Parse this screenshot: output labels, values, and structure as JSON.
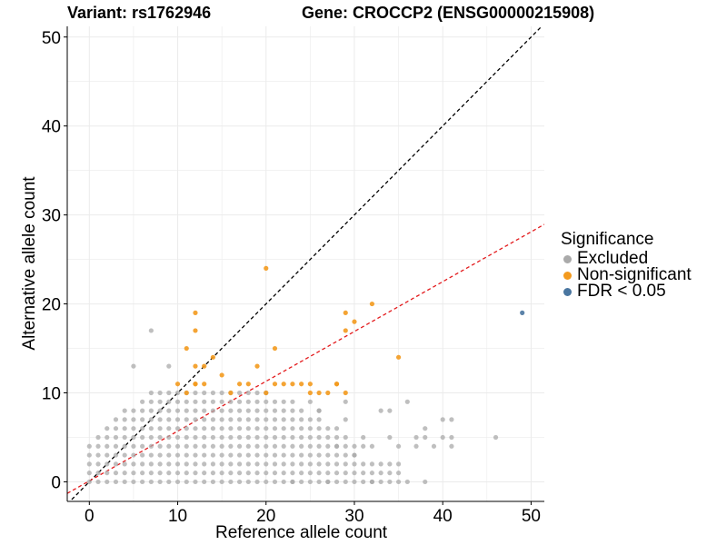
{
  "header": {
    "variant": "Variant: rs1762946",
    "gene": "Gene: CROCCP2 (ENSG00000215908)"
  },
  "chart_data": {
    "type": "scatter",
    "xlabel": "Reference allele count",
    "ylabel": "Alternative allele count",
    "xlim": [
      -2.5,
      51.5
    ],
    "ylim": [
      -2.2,
      51.2
    ],
    "xticks": [
      0,
      10,
      20,
      30,
      40,
      50
    ],
    "yticks": [
      0,
      10,
      20,
      30,
      40,
      50
    ],
    "grid": true,
    "legend": {
      "title": "Significance",
      "placement": "right",
      "entries": [
        {
          "label": "Excluded",
          "color": "#aaaaaa"
        },
        {
          "label": "Non-significant",
          "color": "#f39a1e"
        },
        {
          "label": "FDR < 0.05",
          "color": "#4a76a0"
        }
      ]
    },
    "reference_lines": [
      {
        "name": "y = x",
        "slope": 1.0,
        "intercept": 0,
        "color": "#000000",
        "style": "dashed"
      },
      {
        "name": "fit",
        "slope": 0.56,
        "intercept": 0.1,
        "color": "#e31a1c",
        "style": "dashed"
      }
    ],
    "series": [
      {
        "name": "Excluded",
        "color": "#aaaaaa",
        "x": [
          0,
          1,
          2,
          3,
          4,
          5,
          6,
          7,
          8,
          9,
          10,
          11,
          12,
          13,
          14,
          15,
          16,
          17,
          18,
          19,
          20,
          21,
          22,
          23,
          24,
          25,
          26,
          27,
          28,
          29,
          30,
          31,
          32,
          33,
          34,
          35,
          0,
          1,
          2,
          3,
          4,
          5,
          6,
          7,
          8,
          9,
          10,
          11,
          12,
          13,
          14,
          15,
          16,
          17,
          18,
          19,
          20,
          21,
          22,
          23,
          24,
          25,
          26,
          27,
          28,
          29,
          30,
          31,
          32,
          33,
          34,
          35,
          0,
          1,
          2,
          3,
          4,
          5,
          6,
          7,
          8,
          9,
          10,
          11,
          12,
          13,
          14,
          15,
          16,
          17,
          18,
          19,
          20,
          21,
          22,
          23,
          24,
          25,
          26,
          27,
          28,
          29,
          30,
          31,
          32,
          33,
          34,
          35,
          0,
          1,
          2,
          3,
          4,
          5,
          6,
          7,
          8,
          9,
          10,
          11,
          12,
          13,
          14,
          15,
          16,
          17,
          18,
          19,
          20,
          21,
          22,
          23,
          24,
          25,
          26,
          27,
          28,
          29,
          30,
          0,
          1,
          2,
          3,
          4,
          5,
          6,
          7,
          8,
          9,
          10,
          11,
          12,
          13,
          14,
          15,
          16,
          17,
          18,
          19,
          20,
          21,
          22,
          23,
          24,
          25,
          26,
          27,
          28,
          29,
          30,
          31,
          32,
          1,
          2,
          3,
          4,
          5,
          6,
          7,
          8,
          9,
          10,
          11,
          12,
          13,
          14,
          15,
          16,
          17,
          18,
          19,
          20,
          21,
          22,
          23,
          24,
          25,
          26,
          27,
          28,
          29,
          2,
          3,
          4,
          5,
          6,
          7,
          8,
          9,
          10,
          11,
          12,
          13,
          14,
          15,
          16,
          17,
          18,
          19,
          20,
          21,
          22,
          23,
          24,
          25,
          26,
          27,
          28,
          3,
          4,
          5,
          6,
          7,
          8,
          9,
          10,
          11,
          12,
          13,
          14,
          15,
          16,
          17,
          18,
          19,
          20,
          21,
          22,
          23,
          24,
          25,
          26,
          4,
          5,
          6,
          7,
          8,
          9,
          10,
          11,
          12,
          13,
          14,
          15,
          16,
          17,
          18,
          19,
          20,
          21,
          22,
          23,
          24,
          6,
          7,
          8,
          9,
          10,
          11,
          12,
          13,
          14,
          15,
          16,
          17,
          18,
          19,
          20,
          21,
          22,
          23,
          7,
          8,
          9,
          10,
          11,
          12,
          13,
          14,
          15,
          16,
          17,
          18,
          19,
          20,
          23,
          27,
          32,
          36,
          38,
          35,
          41,
          34,
          37,
          38,
          40,
          41,
          40,
          41,
          38,
          46,
          26,
          29,
          33,
          34,
          36,
          28,
          30,
          31,
          37,
          39,
          5,
          9,
          7,
          20,
          25,
          26,
          29
        ],
        "y": [
          0,
          0,
          0,
          0,
          0,
          0,
          0,
          0,
          0,
          0,
          0,
          0,
          0,
          0,
          0,
          0,
          0,
          0,
          0,
          0,
          0,
          0,
          0,
          0,
          0,
          0,
          0,
          0,
          0,
          0,
          0,
          0,
          0,
          0,
          0,
          0,
          1,
          1,
          1,
          1,
          1,
          1,
          1,
          1,
          1,
          1,
          1,
          1,
          1,
          1,
          1,
          1,
          1,
          1,
          1,
          1,
          1,
          1,
          1,
          1,
          1,
          1,
          1,
          1,
          1,
          1,
          1,
          1,
          1,
          1,
          1,
          1,
          2,
          2,
          2,
          2,
          2,
          2,
          2,
          2,
          2,
          2,
          2,
          2,
          2,
          2,
          2,
          2,
          2,
          2,
          2,
          2,
          2,
          2,
          2,
          2,
          2,
          2,
          2,
          2,
          2,
          2,
          2,
          2,
          2,
          2,
          2,
          2,
          3,
          3,
          3,
          3,
          3,
          3,
          3,
          3,
          3,
          3,
          3,
          3,
          3,
          3,
          3,
          3,
          3,
          3,
          3,
          3,
          3,
          3,
          3,
          3,
          3,
          3,
          3,
          3,
          3,
          3,
          3,
          4,
          4,
          4,
          4,
          4,
          4,
          4,
          4,
          4,
          4,
          4,
          4,
          4,
          4,
          4,
          4,
          4,
          4,
          4,
          4,
          4,
          4,
          4,
          4,
          4,
          4,
          4,
          4,
          4,
          4,
          4,
          4,
          4,
          5,
          5,
          5,
          5,
          5,
          5,
          5,
          5,
          5,
          5,
          5,
          5,
          5,
          5,
          5,
          5,
          5,
          5,
          5,
          5,
          5,
          5,
          5,
          5,
          5,
          5,
          5,
          5,
          5,
          6,
          6,
          6,
          6,
          6,
          6,
          6,
          6,
          6,
          6,
          6,
          6,
          6,
          6,
          6,
          6,
          6,
          6,
          6,
          6,
          6,
          6,
          6,
          6,
          6,
          6,
          6,
          7,
          7,
          7,
          7,
          7,
          7,
          7,
          7,
          7,
          7,
          7,
          7,
          7,
          7,
          7,
          7,
          7,
          7,
          7,
          7,
          7,
          7,
          7,
          7,
          8,
          8,
          8,
          8,
          8,
          8,
          8,
          8,
          8,
          8,
          8,
          8,
          8,
          8,
          8,
          8,
          8,
          8,
          8,
          8,
          8,
          9,
          9,
          9,
          9,
          9,
          9,
          9,
          9,
          9,
          9,
          9,
          9,
          9,
          9,
          9,
          9,
          9,
          9,
          10,
          10,
          10,
          10,
          10,
          10,
          10,
          10,
          10,
          10,
          10,
          10,
          10,
          10,
          0,
          0,
          0,
          0,
          0,
          4,
          4,
          5,
          5,
          5,
          5,
          5,
          7,
          7,
          6,
          5,
          8,
          9,
          8,
          8,
          9,
          4,
          3,
          5,
          4,
          4,
          13,
          13,
          17,
          10,
          9,
          8,
          7
        ]
      },
      {
        "name": "Non-significant",
        "color": "#f39a1e",
        "x": [
          20,
          12,
          21,
          12,
          11,
          13,
          14,
          19,
          12,
          15,
          13,
          10,
          12,
          17,
          18,
          21,
          23,
          24,
          25,
          26,
          27,
          29,
          28,
          29,
          29,
          30,
          32,
          35,
          16,
          20,
          12,
          22,
          25,
          28,
          11
        ],
        "y": [
          24,
          19,
          15,
          17,
          15,
          13,
          14,
          13,
          11,
          12,
          11,
          11,
          11,
          11,
          11,
          11,
          11,
          11,
          11,
          10,
          10,
          10,
          11,
          19,
          17,
          18,
          20,
          14,
          10,
          10,
          13,
          11,
          10,
          11,
          10
        ]
      },
      {
        "name": "FDR < 0.05",
        "color": "#4a76a0",
        "x": [
          49
        ],
        "y": [
          19
        ]
      }
    ]
  }
}
